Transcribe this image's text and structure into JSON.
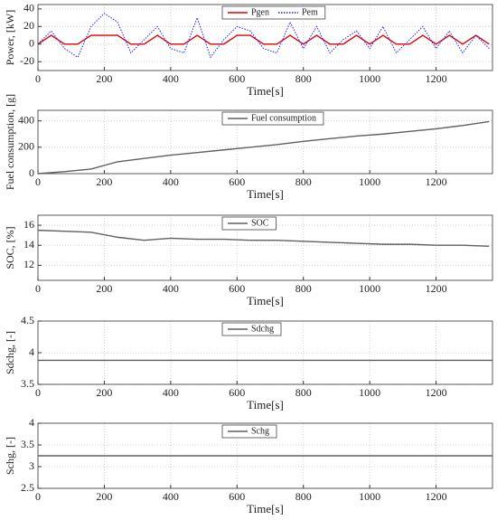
{
  "chart_data": [
    {
      "type": "line",
      "y_label": "Power, [kW]",
      "x_label": "Time[s]",
      "x": [
        0,
        40,
        80,
        120,
        160,
        200,
        240,
        280,
        320,
        360,
        400,
        440,
        480,
        520,
        560,
        600,
        640,
        680,
        720,
        760,
        800,
        840,
        880,
        920,
        960,
        1000,
        1040,
        1080,
        1120,
        1160,
        1200,
        1240,
        1280,
        1320,
        1360
      ],
      "series": [
        {
          "name": "Pgen",
          "color": "#e00000",
          "linestyle": "solid",
          "values": [
            0,
            10,
            0,
            0,
            10,
            10,
            10,
            0,
            0,
            10,
            0,
            0,
            10,
            0,
            0,
            10,
            10,
            0,
            0,
            10,
            0,
            10,
            0,
            0,
            10,
            0,
            10,
            0,
            0,
            10,
            0,
            10,
            0,
            10,
            0
          ]
        },
        {
          "name": "Pem",
          "color": "#2020ff",
          "linestyle": "dotted",
          "values": [
            0,
            15,
            -5,
            -15,
            20,
            35,
            25,
            -10,
            5,
            20,
            -5,
            -10,
            30,
            -15,
            5,
            20,
            15,
            -5,
            -10,
            25,
            -5,
            20,
            -10,
            5,
            15,
            -5,
            20,
            -10,
            5,
            20,
            -5,
            15,
            -10,
            10,
            -5
          ]
        }
      ],
      "xlim": [
        0,
        1370
      ],
      "xticks": [
        0,
        200,
        400,
        600,
        800,
        1000,
        1200
      ],
      "ylim": [
        -30,
        45
      ],
      "yticks": [
        -20,
        0,
        20,
        40
      ],
      "grid": true
    },
    {
      "type": "line",
      "y_label": "Fuel consumption, [g]",
      "x_label": "Time[s]",
      "x": [
        0,
        80,
        160,
        240,
        320,
        400,
        480,
        560,
        640,
        720,
        800,
        880,
        960,
        1040,
        1120,
        1200,
        1280,
        1360
      ],
      "series": [
        {
          "name": "Fuel consumption",
          "color": "#606060",
          "linestyle": "solid",
          "values": [
            0,
            15,
            35,
            90,
            115,
            140,
            160,
            180,
            200,
            220,
            245,
            265,
            285,
            300,
            320,
            340,
            365,
            395
          ]
        }
      ],
      "xlim": [
        0,
        1370
      ],
      "xticks": [
        0,
        200,
        400,
        600,
        800,
        1000,
        1200
      ],
      "ylim": [
        0,
        480
      ],
      "yticks": [
        0,
        200,
        400
      ],
      "grid": true
    },
    {
      "type": "line",
      "y_label": "SOC, [%]",
      "x_label": "Time[s]",
      "x": [
        0,
        80,
        160,
        240,
        320,
        400,
        480,
        560,
        640,
        720,
        800,
        880,
        960,
        1040,
        1120,
        1200,
        1280,
        1360
      ],
      "series": [
        {
          "name": "SOC",
          "color": "#606060",
          "linestyle": "solid",
          "values": [
            15.5,
            15.4,
            15.3,
            14.8,
            14.5,
            14.7,
            14.6,
            14.6,
            14.5,
            14.5,
            14.4,
            14.3,
            14.2,
            14.1,
            14.1,
            14.0,
            14.0,
            13.9
          ]
        }
      ],
      "xlim": [
        0,
        1370
      ],
      "xticks": [
        0,
        200,
        400,
        600,
        800,
        1000,
        1200
      ],
      "ylim": [
        10.5,
        17
      ],
      "yticks": [
        12,
        14,
        16
      ],
      "grid": true
    },
    {
      "type": "line",
      "y_label": "Sdchg, [-]",
      "x_label": "Time[s]",
      "x": [
        0,
        1370
      ],
      "series": [
        {
          "name": "Sdchg",
          "color": "#606060",
          "linestyle": "solid",
          "values": [
            3.88,
            3.88
          ]
        }
      ],
      "xlim": [
        0,
        1370
      ],
      "xticks": [
        0,
        200,
        400,
        600,
        800,
        1000,
        1200
      ],
      "ylim": [
        3.5,
        4.5
      ],
      "yticks": [
        3.5,
        4,
        4.5
      ],
      "grid": true
    },
    {
      "type": "line",
      "y_label": "Schg, [-]",
      "x_label": "Time[s]",
      "x": [
        0,
        1370
      ],
      "series": [
        {
          "name": "Schg",
          "color": "#606060",
          "linestyle": "solid",
          "values": [
            3.25,
            3.25
          ]
        }
      ],
      "xlim": [
        0,
        1370
      ],
      "xticks": [
        0,
        200,
        400,
        600,
        800,
        1000,
        1200
      ],
      "ylim": [
        2.5,
        4
      ],
      "yticks": [
        2.5,
        3,
        3.5,
        4
      ],
      "grid": true
    }
  ]
}
